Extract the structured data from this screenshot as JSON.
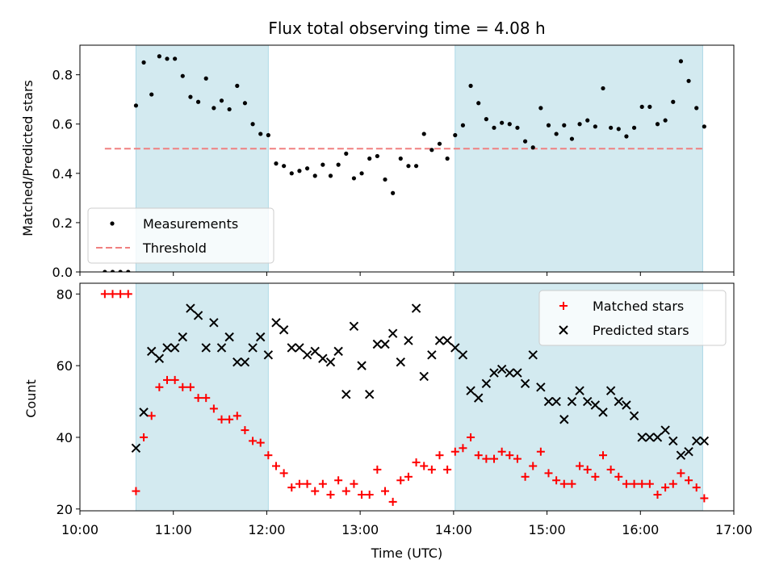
{
  "chart_data": [
    {
      "type": "scatter",
      "title": "Flux total observing time = 4.08 h",
      "xlabel": "",
      "ylabel": "Matched/Predicted stars",
      "xlim": [
        "10:00",
        "17:00"
      ],
      "ylim": [
        0,
        0.92
      ],
      "yticks": [
        0.0,
        0.2,
        0.4,
        0.6,
        0.8
      ],
      "ytick_labels": [
        "0.0",
        "0.2",
        "0.4",
        "0.6",
        "0.8"
      ],
      "shaded_intervals": [
        [
          "10:36",
          "12:01"
        ],
        [
          "14:01",
          "16:40"
        ]
      ],
      "shade_color": "#d3eaf0",
      "legend": {
        "position": "lower-left",
        "entries": [
          "Measurements",
          "Threshold"
        ]
      },
      "threshold": {
        "name": "Threshold",
        "y": 0.5,
        "x_start": "10:16",
        "x_end": "16:40",
        "color": "#f08080",
        "style": "dashed"
      },
      "series": [
        {
          "name": "Measurements",
          "color": "#000000",
          "points": [
            [
              "10:16",
              0.0
            ],
            [
              "10:21",
              0.0
            ],
            [
              "10:26",
              0.0
            ],
            [
              "10:31",
              0.0
            ],
            [
              "10:36",
              0.675
            ],
            [
              "10:41",
              0.85
            ],
            [
              "10:46",
              0.72
            ],
            [
              "10:51",
              0.875
            ],
            [
              "10:56",
              0.865
            ],
            [
              "11:01",
              0.865
            ],
            [
              "11:06",
              0.795
            ],
            [
              "11:11",
              0.71
            ],
            [
              "11:16",
              0.69
            ],
            [
              "11:21",
              0.785
            ],
            [
              "11:26",
              0.665
            ],
            [
              "11:31",
              0.695
            ],
            [
              "11:36",
              0.66
            ],
            [
              "11:41",
              0.755
            ],
            [
              "11:46",
              0.685
            ],
            [
              "11:51",
              0.6
            ],
            [
              "11:56",
              0.56
            ],
            [
              "12:01",
              0.555
            ],
            [
              "12:06",
              0.44
            ],
            [
              "12:11",
              0.43
            ],
            [
              "12:16",
              0.4
            ],
            [
              "12:21",
              0.41
            ],
            [
              "12:26",
              0.42
            ],
            [
              "12:31",
              0.39
            ],
            [
              "12:36",
              0.435
            ],
            [
              "12:41",
              0.39
            ],
            [
              "12:46",
              0.435
            ],
            [
              "12:51",
              0.48
            ],
            [
              "12:56",
              0.38
            ],
            [
              "13:01",
              0.4
            ],
            [
              "13:06",
              0.46
            ],
            [
              "13:11",
              0.47
            ],
            [
              "13:16",
              0.375
            ],
            [
              "13:21",
              0.32
            ],
            [
              "13:26",
              0.46
            ],
            [
              "13:31",
              0.43
            ],
            [
              "13:36",
              0.43
            ],
            [
              "13:41",
              0.56
            ],
            [
              "13:46",
              0.495
            ],
            [
              "13:51",
              0.52
            ],
            [
              "13:56",
              0.46
            ],
            [
              "14:01",
              0.555
            ],
            [
              "14:06",
              0.595
            ],
            [
              "14:11",
              0.755
            ],
            [
              "14:16",
              0.685
            ],
            [
              "14:21",
              0.62
            ],
            [
              "14:26",
              0.585
            ],
            [
              "14:31",
              0.605
            ],
            [
              "14:36",
              0.6
            ],
            [
              "14:41",
              0.585
            ],
            [
              "14:46",
              0.53
            ],
            [
              "14:51",
              0.505
            ],
            [
              "14:56",
              0.665
            ],
            [
              "15:01",
              0.595
            ],
            [
              "15:06",
              0.56
            ],
            [
              "15:11",
              0.595
            ],
            [
              "15:16",
              0.54
            ],
            [
              "15:21",
              0.6
            ],
            [
              "15:26",
              0.615
            ],
            [
              "15:31",
              0.59
            ],
            [
              "15:36",
              0.745
            ],
            [
              "15:41",
              0.585
            ],
            [
              "15:46",
              0.58
            ],
            [
              "15:51",
              0.55
            ],
            [
              "15:56",
              0.585
            ],
            [
              "16:01",
              0.67
            ],
            [
              "16:06",
              0.67
            ],
            [
              "16:11",
              0.6
            ],
            [
              "16:16",
              0.615
            ],
            [
              "16:21",
              0.69
            ],
            [
              "16:26",
              0.855
            ],
            [
              "16:31",
              0.775
            ],
            [
              "16:36",
              0.665
            ],
            [
              "16:41",
              0.59
            ]
          ]
        }
      ]
    },
    {
      "type": "scatter",
      "title": "",
      "xlabel": "Time (UTC)",
      "ylabel": "Count",
      "xlim": [
        "10:00",
        "17:00"
      ],
      "ylim": [
        19.5,
        83
      ],
      "yticks": [
        20,
        40,
        60,
        80
      ],
      "ytick_labels": [
        "20",
        "40",
        "60",
        "80"
      ],
      "xticks": [
        "10:00",
        "11:00",
        "12:00",
        "13:00",
        "14:00",
        "15:00",
        "16:00",
        "17:00"
      ],
      "xtick_labels": [
        "10:00",
        "11:00",
        "12:00",
        "13:00",
        "14:00",
        "15:00",
        "16:00",
        "17:00"
      ],
      "shaded_intervals": [
        [
          "10:36",
          "12:01"
        ],
        [
          "14:01",
          "16:40"
        ]
      ],
      "shade_color": "#d3eaf0",
      "legend": {
        "position": "top-right",
        "entries": [
          "Matched stars",
          "Predicted stars"
        ]
      },
      "series": [
        {
          "name": "Matched stars",
          "marker": "+",
          "color": "#ff0000",
          "points": [
            [
              "10:16",
              80
            ],
            [
              "10:21",
              80
            ],
            [
              "10:26",
              80
            ],
            [
              "10:31",
              80
            ],
            [
              "10:36",
              25
            ],
            [
              "10:41",
              40
            ],
            [
              "10:46",
              46
            ],
            [
              "10:51",
              54
            ],
            [
              "10:56",
              56
            ],
            [
              "11:01",
              56
            ],
            [
              "11:06",
              54
            ],
            [
              "11:11",
              54
            ],
            [
              "11:16",
              51
            ],
            [
              "11:21",
              51
            ],
            [
              "11:26",
              48
            ],
            [
              "11:31",
              45
            ],
            [
              "11:36",
              45
            ],
            [
              "11:41",
              46
            ],
            [
              "11:46",
              42
            ],
            [
              "11:51",
              39
            ],
            [
              "11:56",
              38.5
            ],
            [
              "12:01",
              35
            ],
            [
              "12:06",
              32
            ],
            [
              "12:11",
              30
            ],
            [
              "12:16",
              26
            ],
            [
              "12:21",
              27
            ],
            [
              "12:26",
              27
            ],
            [
              "12:31",
              25
            ],
            [
              "12:36",
              27
            ],
            [
              "12:41",
              24
            ],
            [
              "12:46",
              28
            ],
            [
              "12:51",
              25
            ],
            [
              "12:56",
              27
            ],
            [
              "13:01",
              24
            ],
            [
              "13:06",
              24
            ],
            [
              "13:11",
              31
            ],
            [
              "13:16",
              25
            ],
            [
              "13:21",
              22
            ],
            [
              "13:26",
              28
            ],
            [
              "13:31",
              29
            ],
            [
              "13:36",
              33
            ],
            [
              "13:41",
              32
            ],
            [
              "13:46",
              31
            ],
            [
              "13:51",
              35
            ],
            [
              "13:56",
              31
            ],
            [
              "14:01",
              36
            ],
            [
              "14:06",
              37
            ],
            [
              "14:11",
              40
            ],
            [
              "14:16",
              35
            ],
            [
              "14:21",
              34
            ],
            [
              "14:26",
              34
            ],
            [
              "14:31",
              36
            ],
            [
              "14:36",
              35
            ],
            [
              "14:41",
              34
            ],
            [
              "14:46",
              29
            ],
            [
              "14:51",
              32
            ],
            [
              "14:56",
              36
            ],
            [
              "15:01",
              30
            ],
            [
              "15:06",
              28
            ],
            [
              "15:11",
              27
            ],
            [
              "15:16",
              27
            ],
            [
              "15:21",
              32
            ],
            [
              "15:26",
              31
            ],
            [
              "15:31",
              29
            ],
            [
              "15:36",
              35
            ],
            [
              "15:41",
              31
            ],
            [
              "15:46",
              29
            ],
            [
              "15:51",
              27
            ],
            [
              "15:56",
              27
            ],
            [
              "16:01",
              27
            ],
            [
              "16:06",
              27
            ],
            [
              "16:11",
              24
            ],
            [
              "16:16",
              26
            ],
            [
              "16:21",
              27
            ],
            [
              "16:26",
              30
            ],
            [
              "16:31",
              28
            ],
            [
              "16:36",
              26
            ],
            [
              "16:41",
              23
            ]
          ]
        },
        {
          "name": "Predicted stars",
          "marker": "x",
          "color": "#000000",
          "points": [
            [
              "10:36",
              37
            ],
            [
              "10:41",
              47
            ],
            [
              "10:46",
              64
            ],
            [
              "10:51",
              62
            ],
            [
              "10:56",
              65
            ],
            [
              "11:01",
              65
            ],
            [
              "11:06",
              68
            ],
            [
              "11:11",
              76
            ],
            [
              "11:16",
              74
            ],
            [
              "11:21",
              65
            ],
            [
              "11:26",
              72
            ],
            [
              "11:31",
              65
            ],
            [
              "11:36",
              68
            ],
            [
              "11:41",
              61
            ],
            [
              "11:46",
              61
            ],
            [
              "11:51",
              65
            ],
            [
              "11:56",
              68
            ],
            [
              "12:01",
              63
            ],
            [
              "12:06",
              72
            ],
            [
              "12:11",
              70
            ],
            [
              "12:16",
              65
            ],
            [
              "12:21",
              65
            ],
            [
              "12:26",
              63
            ],
            [
              "12:31",
              64
            ],
            [
              "12:36",
              62
            ],
            [
              "12:41",
              61
            ],
            [
              "12:46",
              64
            ],
            [
              "12:51",
              52
            ],
            [
              "12:56",
              71
            ],
            [
              "13:01",
              60
            ],
            [
              "13:06",
              52
            ],
            [
              "13:11",
              66
            ],
            [
              "13:16",
              66
            ],
            [
              "13:21",
              69
            ],
            [
              "13:26",
              61
            ],
            [
              "13:31",
              67
            ],
            [
              "13:36",
              76
            ],
            [
              "13:41",
              57
            ],
            [
              "13:46",
              63
            ],
            [
              "13:51",
              67
            ],
            [
              "13:56",
              67
            ],
            [
              "14:01",
              65
            ],
            [
              "14:06",
              63
            ],
            [
              "14:11",
              53
            ],
            [
              "14:16",
              51
            ],
            [
              "14:21",
              55
            ],
            [
              "14:26",
              58
            ],
            [
              "14:31",
              59
            ],
            [
              "14:36",
              58
            ],
            [
              "14:41",
              58
            ],
            [
              "14:46",
              55
            ],
            [
              "14:51",
              63
            ],
            [
              "14:56",
              54
            ],
            [
              "15:01",
              50
            ],
            [
              "15:06",
              50
            ],
            [
              "15:11",
              45
            ],
            [
              "15:16",
              50
            ],
            [
              "15:21",
              53
            ],
            [
              "15:26",
              50
            ],
            [
              "15:31",
              49
            ],
            [
              "15:36",
              47
            ],
            [
              "15:41",
              53
            ],
            [
              "15:46",
              50
            ],
            [
              "15:51",
              49
            ],
            [
              "15:56",
              46
            ],
            [
              "16:01",
              40
            ],
            [
              "16:06",
              40
            ],
            [
              "16:11",
              40
            ],
            [
              "16:16",
              42
            ],
            [
              "16:21",
              39
            ],
            [
              "16:26",
              35
            ],
            [
              "16:31",
              36
            ],
            [
              "16:36",
              39
            ],
            [
              "16:41",
              39
            ]
          ]
        }
      ]
    }
  ]
}
